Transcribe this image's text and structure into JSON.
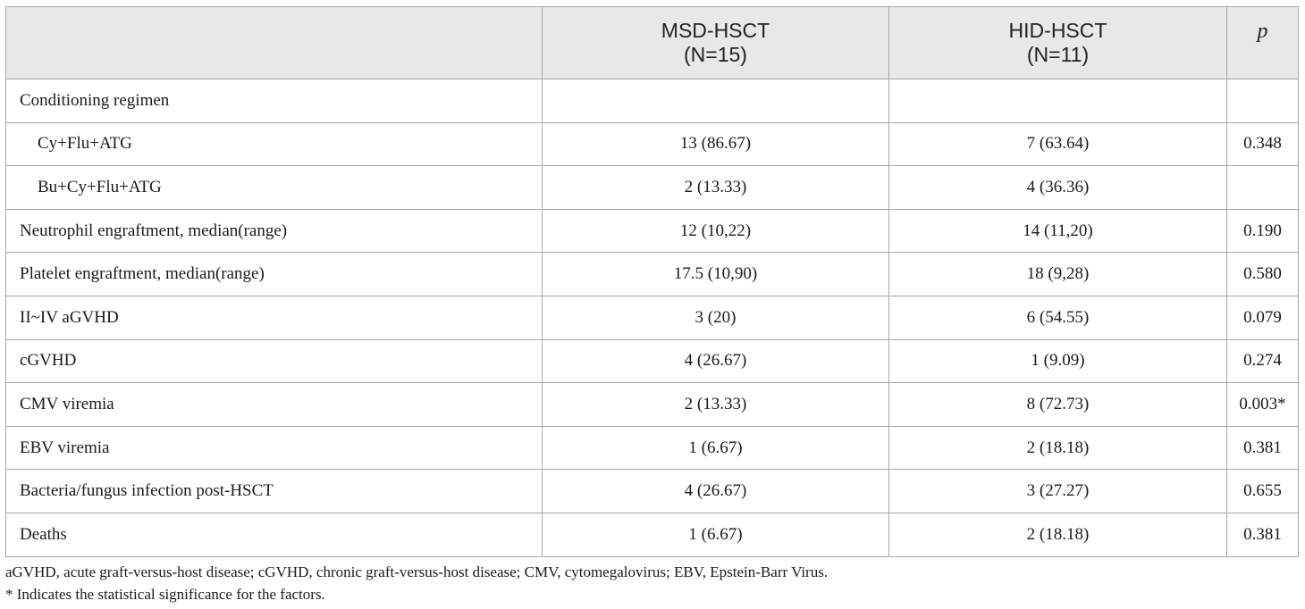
{
  "header": {
    "col1": "",
    "col2_line1": "MSD-HSCT",
    "col2_line2": "(N=15)",
    "col3_line1": "HID-HSCT",
    "col3_line2": "(N=11)",
    "col4": "p"
  },
  "rows": [
    {
      "label": "Conditioning regimen",
      "msd": "",
      "hid": "",
      "p": ""
    },
    {
      "label": "Cy+Flu+ATG",
      "msd": "13 (86.67)",
      "hid": "7 (63.64)",
      "p": "0.348"
    },
    {
      "label": "Bu+Cy+Flu+ATG",
      "msd": "2 (13.33)",
      "hid": "4 (36.36)",
      "p": ""
    },
    {
      "label": "Neutrophil engraftment, median(range)",
      "msd": "12 (10,22)",
      "hid": "14 (11,20)",
      "p": "0.190"
    },
    {
      "label": "Platelet engraftment, median(range)",
      "msd": "17.5 (10,90)",
      "hid": "18 (9,28)",
      "p": "0.580"
    },
    {
      "label": "II~IV aGVHD",
      "msd": "3 (20)",
      "hid": "6 (54.55)",
      "p": "0.079"
    },
    {
      "label": "cGVHD",
      "msd": "4 (26.67)",
      "hid": "1 (9.09)",
      "p": "0.274"
    },
    {
      "label": "CMV viremia",
      "msd": "2 (13.33)",
      "hid": "8 (72.73)",
      "p": "0.003*"
    },
    {
      "label": "EBV viremia",
      "msd": "1 (6.67)",
      "hid": "2 (18.18)",
      "p": "0.381"
    },
    {
      "label": "Bacteria/fungus infection post-HSCT",
      "msd": "4 (26.67)",
      "hid": "3 (27.27)",
      "p": "0.655"
    },
    {
      "label": "Deaths",
      "msd": "1 (6.67)",
      "hid": "2 (18.18)",
      "p": "0.381"
    }
  ],
  "footnotes": {
    "abbreviations": "aGVHD, acute graft-versus-host disease; cGVHD, chronic graft-versus-host disease; CMV, cytomegalovirus; EBV, Epstein-Barr Virus.",
    "significance": "* Indicates the statistical significance for the factors."
  }
}
